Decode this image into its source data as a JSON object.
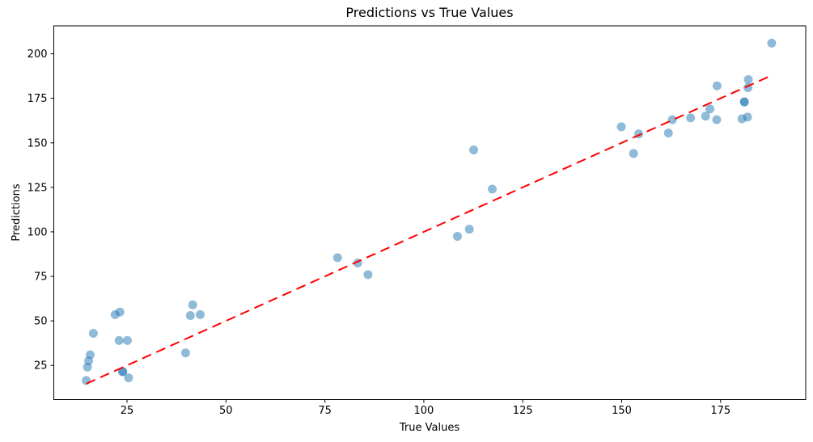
{
  "chart_data": {
    "type": "scatter",
    "title": "Predictions vs True Values",
    "xlabel": "True Values",
    "ylabel": "Predictions",
    "xlim": [
      6.5,
      196.5
    ],
    "ylim": [
      5.8,
      215.7
    ],
    "x_ticks": [
      25,
      50,
      75,
      100,
      125,
      150,
      175
    ],
    "y_ticks": [
      25,
      50,
      75,
      100,
      125,
      150,
      175,
      200
    ],
    "grid": false,
    "legend": "none",
    "marker_color": "#1f77b4",
    "marker_alpha": 0.5,
    "background_color": "#ffffff",
    "spine_color": "#000000",
    "points": [
      [
        14.7,
        16.5
      ],
      [
        15.0,
        24.0
      ],
      [
        15.3,
        27.5
      ],
      [
        15.7,
        31.0
      ],
      [
        16.5,
        43.0
      ],
      [
        22.0,
        53.5
      ],
      [
        23.0,
        39.0
      ],
      [
        23.2,
        55.0
      ],
      [
        23.9,
        21.5
      ],
      [
        23.9,
        21.5
      ],
      [
        25.1,
        39.0
      ],
      [
        25.4,
        18.0
      ],
      [
        39.8,
        32.0
      ],
      [
        41.0,
        53.0
      ],
      [
        41.6,
        59.0
      ],
      [
        43.5,
        53.5
      ],
      [
        78.2,
        85.5
      ],
      [
        83.3,
        82.5
      ],
      [
        85.9,
        76.0
      ],
      [
        108.5,
        97.5
      ],
      [
        111.5,
        101.5
      ],
      [
        112.6,
        146.0
      ],
      [
        117.3,
        124.0
      ],
      [
        149.9,
        159.0
      ],
      [
        153.0,
        144.0
      ],
      [
        154.3,
        155.0
      ],
      [
        161.8,
        155.5
      ],
      [
        162.8,
        163.0
      ],
      [
        167.4,
        164.0
      ],
      [
        171.2,
        165.0
      ],
      [
        172.3,
        169.0
      ],
      [
        174.0,
        163.0
      ],
      [
        174.1,
        182.0
      ],
      [
        180.4,
        163.5
      ],
      [
        181.0,
        173.0
      ],
      [
        181.0,
        173.0
      ],
      [
        181.8,
        164.5
      ],
      [
        181.9,
        181.0
      ],
      [
        182.0,
        185.5
      ],
      [
        187.9,
        206.0
      ]
    ],
    "reference_line": {
      "style": "dashed",
      "color": "#ff0000",
      "from": [
        14.7,
        14.7
      ],
      "to": [
        187.9,
        187.9
      ]
    }
  }
}
